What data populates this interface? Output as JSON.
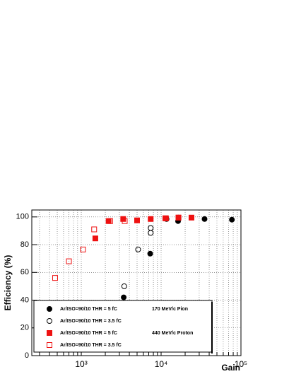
{
  "chart_data": {
    "type": "scatter",
    "x_label": "Gain",
    "y_label": "Efficiency (%)",
    "xlog": true,
    "grid": true,
    "xlim": [
      240,
      100000
    ],
    "ylim": [
      0,
      105
    ],
    "xticks": [
      {
        "value": 1000,
        "label": "10³"
      },
      {
        "value": 10000,
        "label": "10⁴"
      },
      {
        "value": 100000,
        "label": "10⁵"
      }
    ],
    "xminorticks": [
      300,
      400,
      500,
      600,
      700,
      800,
      900,
      2000,
      3000,
      4000,
      5000,
      6000,
      7000,
      8000,
      9000,
      20000,
      30000,
      40000,
      50000,
      60000,
      70000,
      80000,
      90000
    ],
    "yticks": [
      0,
      20,
      40,
      60,
      80,
      100
    ],
    "series": [
      {
        "name": "Ar/ISO=90/10 THR = 5 fC",
        "beam": "170 MeV/c Pion",
        "color": "#000000",
        "marker": "circle",
        "filled": true,
        "x": [
          3400,
          7300,
          16300,
          35000,
          77000
        ],
        "values": [
          42,
          73.5,
          97,
          98.5,
          98
        ]
      },
      {
        "name": "Ar/ISO=90/10 THR = 3.5 fC",
        "color": "#000000",
        "marker": "circle",
        "filled": false,
        "x": [
          3450,
          5150,
          7400,
          7400,
          11700,
          16500
        ],
        "values": [
          50,
          76.5,
          92,
          88.5,
          98.5,
          99.5
        ]
      },
      {
        "name": "Ar/ISO=90/10 THR = 5 fC",
        "beam": "440 MeV/c Proton",
        "color": "#ee1111",
        "marker": "square",
        "filled": true,
        "x": [
          1500,
          2200,
          3350,
          5000,
          7400,
          11300,
          16500,
          24000
        ],
        "values": [
          84.5,
          97,
          98.5,
          97.5,
          98.5,
          99,
          99.5,
          99.5
        ]
      },
      {
        "name": "Ar/ISO=90/10 THR = 3.5 fC",
        "color": "#ee1111",
        "marker": "square",
        "filled": false,
        "x": [
          470,
          700,
          1050,
          1450,
          2300,
          3500,
          11500,
          16500
        ],
        "values": [
          56,
          68,
          76.5,
          91,
          97,
          97,
          99,
          99.5
        ]
      }
    ]
  }
}
